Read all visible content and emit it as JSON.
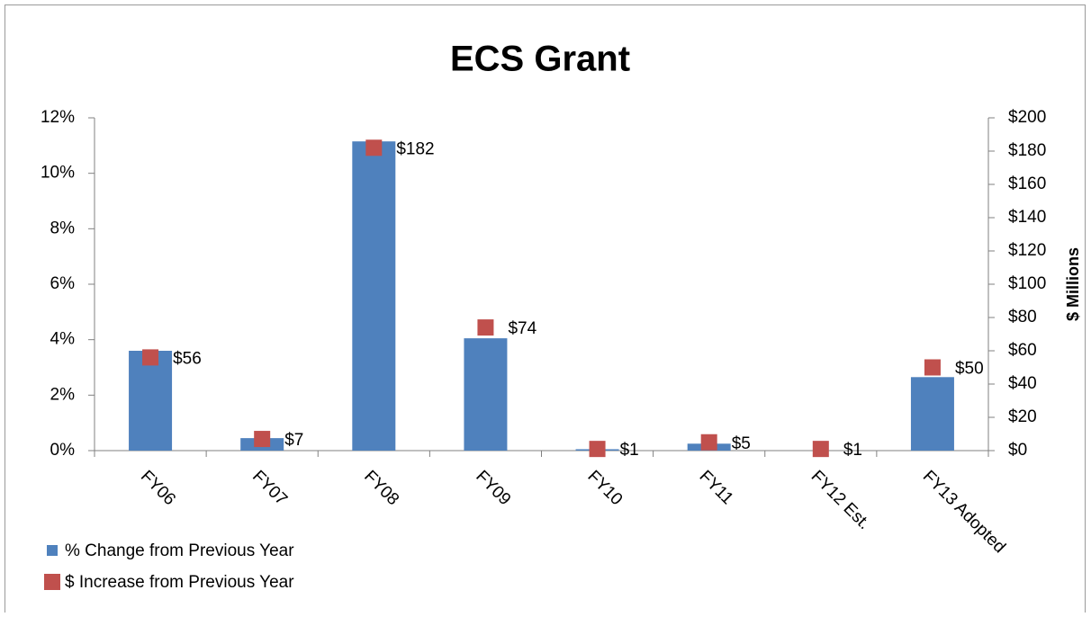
{
  "chart_data": {
    "type": "bar",
    "title": "ECS Grant",
    "y2_label": "$ Millions",
    "categories": [
      "FY06",
      "FY07",
      "FY08",
      "FY09",
      "FY10",
      "FY11",
      "FY12 Est.",
      "FY13 Adopted"
    ],
    "series": [
      {
        "name": "% Change from Previous Year",
        "type": "bar",
        "color": "#4f81bd",
        "values": [
          3.6,
          0.45,
          11.15,
          4.05,
          0.05,
          0.25,
          0,
          2.65
        ]
      },
      {
        "name": "$ Increase from Previous Year",
        "type": "scatter",
        "axis": "y2",
        "color": "#c0504d",
        "values": [
          56,
          7,
          182,
          74,
          1,
          5,
          1,
          50
        ],
        "value_labels": [
          "$56",
          "$7",
          "$182",
          "$74",
          "$1",
          "$5",
          "$1",
          "$50"
        ]
      }
    ],
    "ylim": [
      0,
      12
    ],
    "yticks": [
      {
        "value": 0,
        "label": "0%"
      },
      {
        "value": 2,
        "label": "2%"
      },
      {
        "value": 4,
        "label": "4%"
      },
      {
        "value": 6,
        "label": "6%"
      },
      {
        "value": 8,
        "label": "8%"
      },
      {
        "value": 10,
        "label": "10%"
      },
      {
        "value": 12,
        "label": "12%"
      }
    ],
    "y2lim": [
      0,
      200
    ],
    "y2ticks": [
      {
        "value": 0,
        "label": "$0"
      },
      {
        "value": 20,
        "label": "$20"
      },
      {
        "value": 40,
        "label": "$40"
      },
      {
        "value": 60,
        "label": "$60"
      },
      {
        "value": 80,
        "label": "$80"
      },
      {
        "value": 100,
        "label": "$100"
      },
      {
        "value": 120,
        "label": "$120"
      },
      {
        "value": 140,
        "label": "$140"
      },
      {
        "value": 160,
        "label": "$160"
      },
      {
        "value": 180,
        "label": "$180"
      },
      {
        "value": 200,
        "label": "$200"
      }
    ],
    "legend": "bottom-left",
    "grid": false
  }
}
